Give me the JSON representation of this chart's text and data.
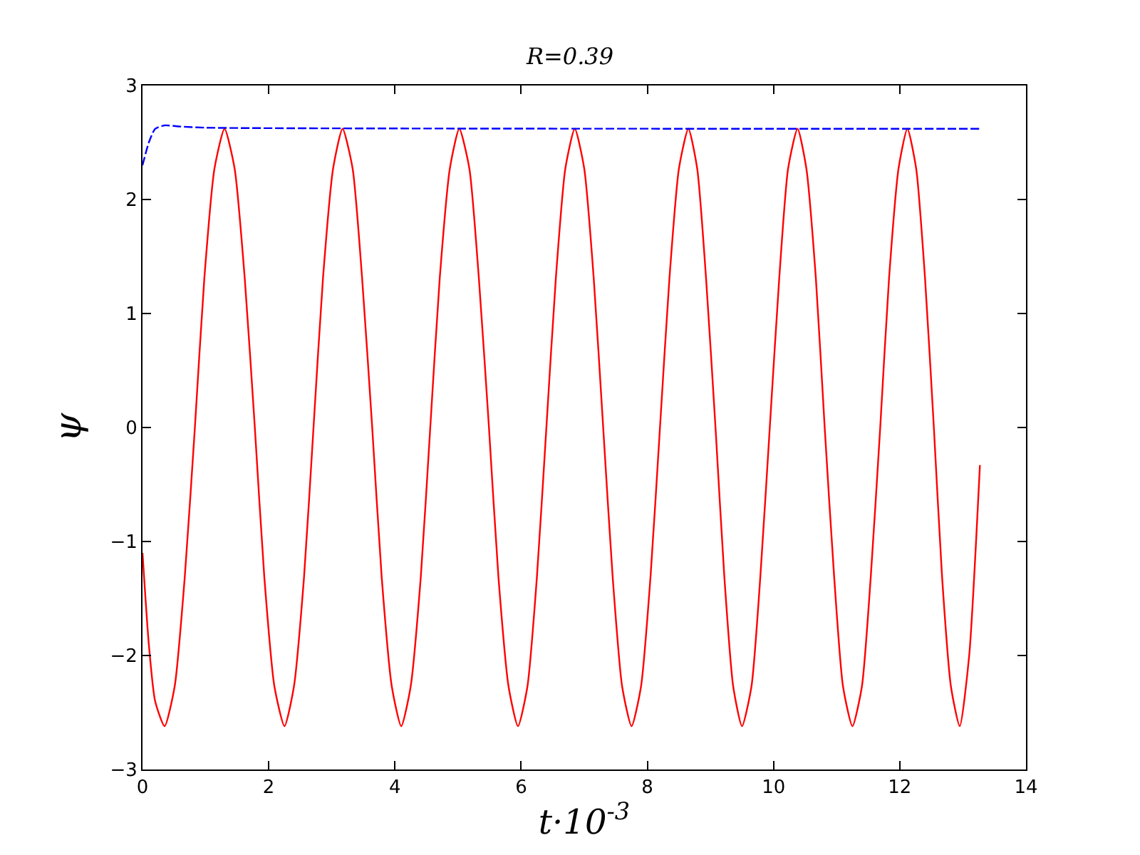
{
  "chart_data": {
    "type": "line",
    "title": "R=0.39",
    "xlabel": "t·10$^{-3}$",
    "ylabel": "ψ",
    "xlim": [
      0,
      14
    ],
    "xticks": [
      0,
      2,
      4,
      6,
      8,
      10,
      12,
      14
    ],
    "ylim": [
      -3,
      3
    ],
    "yticks": [
      -3,
      -2,
      -1,
      0,
      1,
      2,
      3
    ],
    "series": [
      {
        "color": "#ff0000",
        "line_style": "solid",
        "x": [
          0,
          0.1,
          0.2,
          0.35,
          0.51,
          0.67,
          0.83,
          0.98,
          1.14,
          1.3,
          1.46,
          1.62,
          1.78,
          1.93,
          2.09,
          2.25,
          2.4,
          2.56,
          2.71,
          2.86,
          3.02,
          3.17,
          3.33,
          3.48,
          3.64,
          3.79,
          3.95,
          4.1,
          4.25,
          4.41,
          4.56,
          4.71,
          4.87,
          5.02,
          5.18,
          5.33,
          5.49,
          5.64,
          5.8,
          5.95,
          6.1,
          6.25,
          6.4,
          6.55,
          6.7,
          6.85,
          7.0,
          7.15,
          7.3,
          7.45,
          7.6,
          7.75,
          7.9,
          8.05,
          8.2,
          8.35,
          8.5,
          8.65,
          8.79,
          8.93,
          9.08,
          9.22,
          9.36,
          9.5,
          9.65,
          9.79,
          9.94,
          10.09,
          10.23,
          10.38,
          10.52,
          10.67,
          10.81,
          10.96,
          11.1,
          11.25,
          11.4,
          11.54,
          11.69,
          11.83,
          11.98,
          12.12,
          12.26,
          12.4,
          12.54,
          12.67,
          12.81,
          12.95,
          13.1,
          13.27
        ],
        "values": [
          -1.1,
          -1.9,
          -2.4,
          -2.62,
          -2.27,
          -1.31,
          0,
          1.31,
          2.27,
          2.62,
          2.27,
          1.31,
          0,
          -1.31,
          -2.27,
          -2.62,
          -2.27,
          -1.31,
          0,
          1.31,
          2.27,
          2.62,
          2.27,
          1.31,
          0,
          -1.31,
          -2.27,
          -2.62,
          -2.27,
          -1.31,
          0,
          1.31,
          2.27,
          2.62,
          2.27,
          1.31,
          0,
          -1.31,
          -2.27,
          -2.62,
          -2.27,
          -1.31,
          0,
          1.31,
          2.27,
          2.62,
          2.27,
          1.31,
          0,
          -1.31,
          -2.27,
          -2.62,
          -2.27,
          -1.31,
          0,
          1.31,
          2.27,
          2.62,
          2.27,
          1.31,
          0,
          -1.31,
          -2.27,
          -2.62,
          -2.27,
          -1.31,
          0,
          1.31,
          2.27,
          2.62,
          2.27,
          1.31,
          0,
          -1.31,
          -2.27,
          -2.62,
          -2.27,
          -1.31,
          0,
          1.31,
          2.27,
          2.62,
          2.27,
          1.31,
          0,
          -1.31,
          -2.27,
          -2.62,
          -2.0,
          -0.33
        ]
      },
      {
        "color": "#0000ff",
        "line_style": "dashed",
        "x": [
          0,
          0.1,
          0.2,
          0.35,
          0.6,
          1,
          13.27
        ],
        "values": [
          2.3,
          2.5,
          2.62,
          2.65,
          2.64,
          2.63,
          2.62
        ]
      }
    ]
  }
}
